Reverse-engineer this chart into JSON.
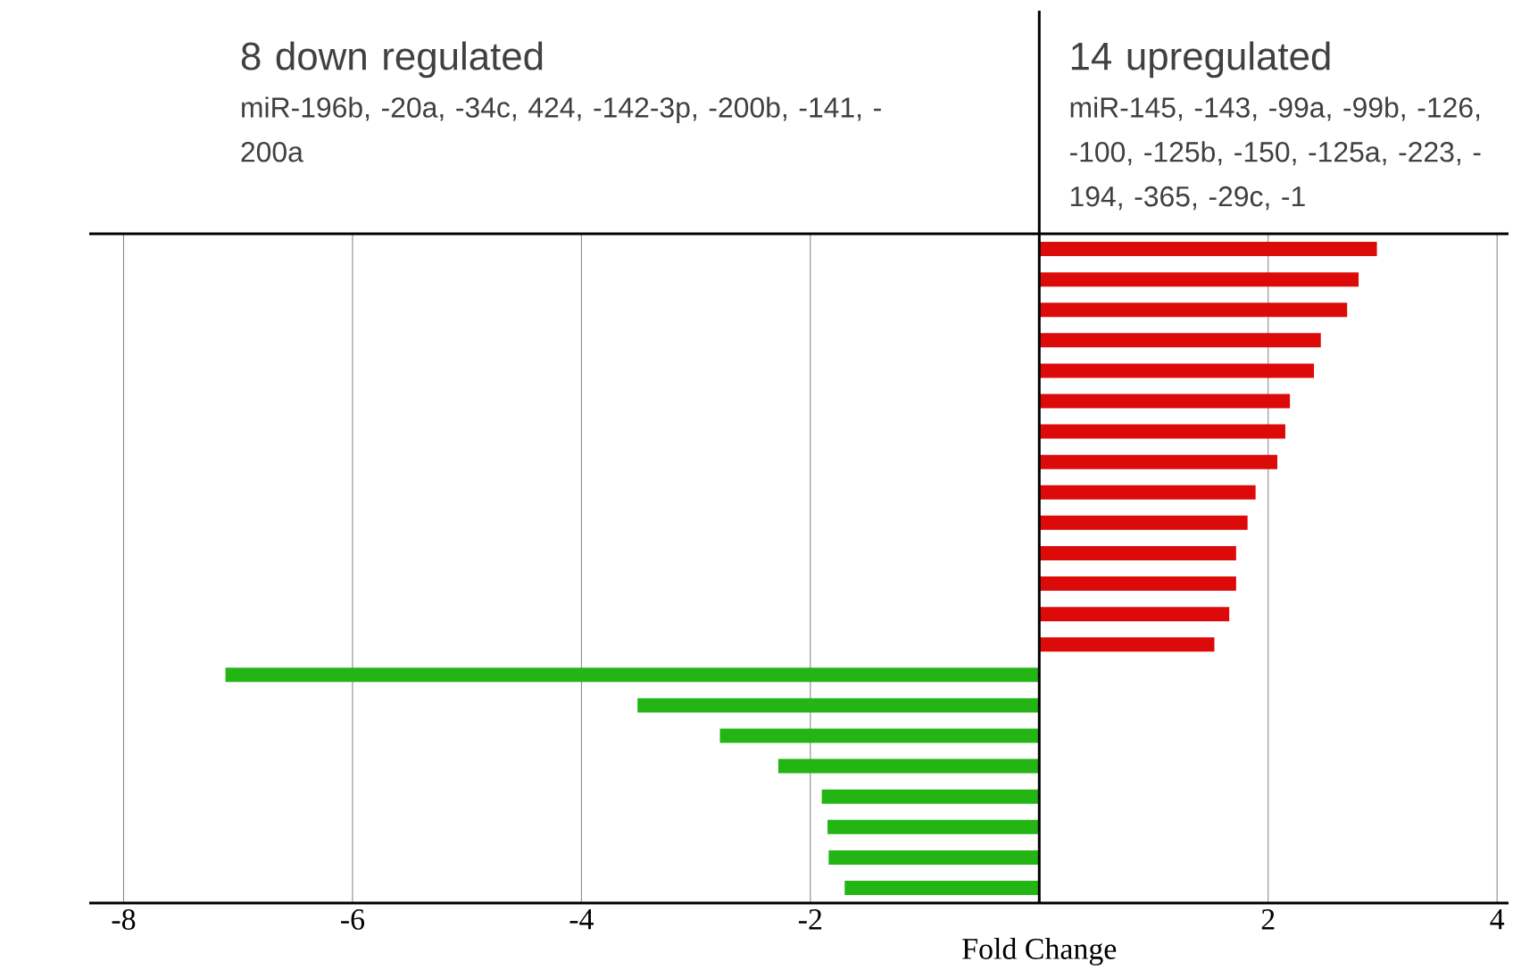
{
  "chart_data": {
    "type": "bar",
    "orientation": "horizontal",
    "xlabel": "Fold Change",
    "categories": [
      null,
      null,
      null,
      null,
      null,
      null,
      null,
      null,
      null,
      null,
      null,
      null,
      null,
      null,
      null,
      null,
      null,
      null,
      null,
      null,
      null,
      null
    ],
    "values": [
      2.95,
      2.79,
      2.69,
      2.46,
      2.4,
      2.19,
      2.15,
      2.08,
      1.89,
      1.82,
      1.72,
      1.72,
      1.66,
      1.53,
      -7.11,
      -3.51,
      -2.79,
      -2.28,
      -1.9,
      -1.85,
      -1.84,
      -1.7
    ],
    "colors": [
      "#dd0a0a",
      "#dd0a0a",
      "#dd0a0a",
      "#dd0a0a",
      "#dd0a0a",
      "#dd0a0a",
      "#dd0a0a",
      "#dd0a0a",
      "#dd0a0a",
      "#dd0a0a",
      "#dd0a0a",
      "#dd0a0a",
      "#dd0a0a",
      "#dd0a0a",
      "#22b514",
      "#22b514",
      "#22b514",
      "#22b514",
      "#22b514",
      "#22b514",
      "#22b514",
      "#22b514"
    ],
    "xlim": [
      -8.3,
      4.1
    ],
    "xticks": [
      -8,
      -6,
      -4,
      -2,
      2,
      4
    ],
    "grid": "x",
    "tick_labels": "x",
    "annotations": [
      "8 down regulated",
      "miR-196b, -20a, -34c, 424, -142-3p, -200b, -141, -200a",
      "14 upregulated",
      "miR-145, -143, -99a, -99b, -126, -100, -125b, -150, -125a, -223, -194, -365, -29c, -1"
    ]
  }
}
